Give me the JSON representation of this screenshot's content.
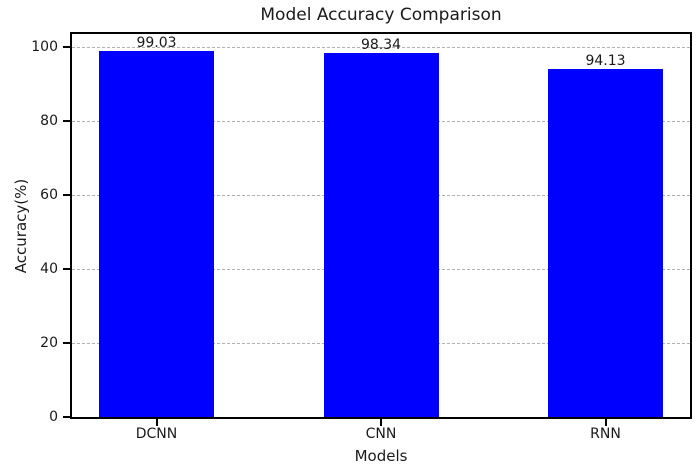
{
  "chart_data": {
    "type": "bar",
    "title": "Model Accuracy Comparison",
    "xlabel": "Models",
    "ylabel": "Accuracy(%)",
    "categories": [
      "DCNN",
      "CNN",
      "RNN"
    ],
    "values": [
      99.03,
      98.34,
      94.13
    ],
    "value_labels": [
      "99.03",
      "98.34",
      "94.13"
    ],
    "bar_color": "#0000ff",
    "text_color": "#1a1a1a",
    "grid_color": "#b0b0b0",
    "yticks": [
      0,
      20,
      40,
      60,
      80,
      100
    ],
    "ylim": [
      0,
      103.5
    ],
    "grid": "horizontal-dashed",
    "legend": "none"
  }
}
